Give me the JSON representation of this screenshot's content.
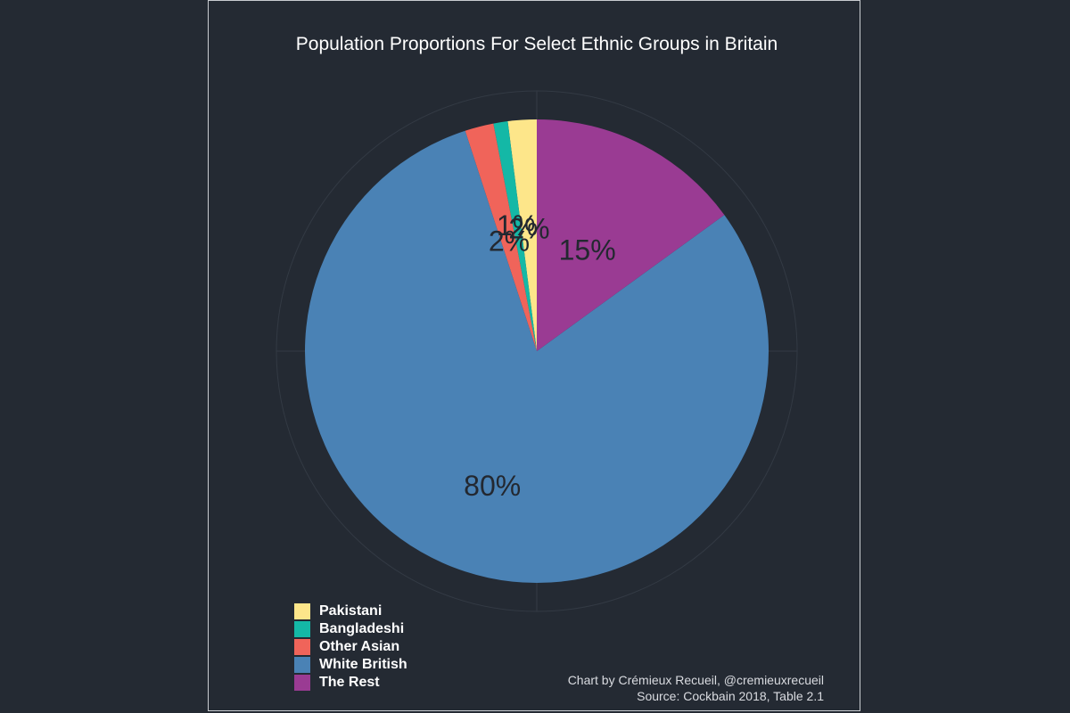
{
  "chart_data": {
    "type": "pie",
    "title": "Population Proportions For Select Ethnic Groups in Britain",
    "start_angle_deg": 0,
    "direction": "counterclockwise",
    "slices": [
      {
        "label": "Pakistani",
        "value": 2,
        "value_label": "2%",
        "color": "#fde68a"
      },
      {
        "label": "Bangladeshi",
        "value": 1,
        "value_label": "1%",
        "color": "#14b8a6"
      },
      {
        "label": "Other Asian",
        "value": 2,
        "value_label": "2%",
        "color": "#f0645a"
      },
      {
        "label": "White British",
        "value": 80,
        "value_label": "80%",
        "color": "#4a82b5"
      },
      {
        "label": "The Rest",
        "value": 15,
        "value_label": "15%",
        "color": "#9a3b93"
      }
    ],
    "legend_placement": "bottom-left",
    "grid": true
  },
  "caption": {
    "line1": "Chart by Crémieux Recueil, @cremieuxrecueil",
    "line2": "Source: Cockbain 2018, Table 2.1"
  },
  "colors": {
    "background": "#242a33",
    "grid": "#333a44",
    "label_text": "#232830",
    "title_text": "#ffffff"
  }
}
